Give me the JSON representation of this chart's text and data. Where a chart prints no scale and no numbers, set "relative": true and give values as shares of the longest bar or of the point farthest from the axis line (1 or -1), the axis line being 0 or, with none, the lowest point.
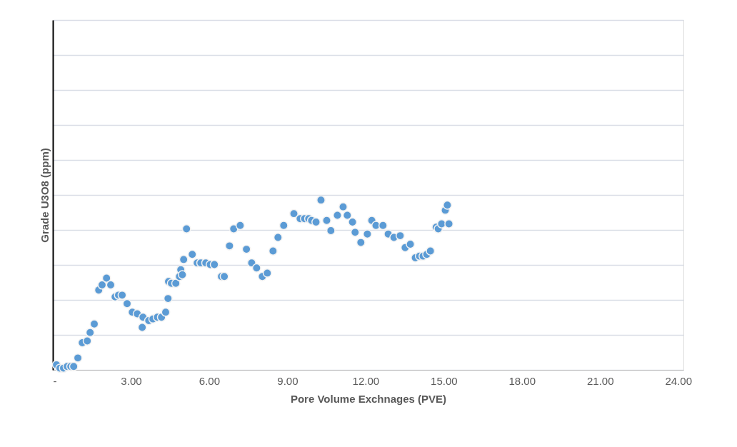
{
  "chart_data": {
    "type": "scatter",
    "xlabel": "Pore Volume Exchnages (PVE)",
    "ylabel": "Grade U3O8 (ppm)",
    "relative": true,
    "xlim": [
      0,
      24.2
    ],
    "xticks": [
      {
        "value": 0,
        "label": "-"
      },
      {
        "value": 3,
        "label": "3.00"
      },
      {
        "value": 6,
        "label": "6.00"
      },
      {
        "value": 9,
        "label": "9.00"
      },
      {
        "value": 12,
        "label": "12.00"
      },
      {
        "value": 15,
        "label": "15.00"
      },
      {
        "value": 18,
        "label": "18.00"
      },
      {
        "value": 21,
        "label": "21.00"
      },
      {
        "value": 24,
        "label": "24.00"
      }
    ],
    "tick_labels": "x",
    "grid": "y",
    "marker": "circle",
    "legend": false,
    "series": [
      {
        "color": "#5b9bd5",
        "x": [
          0.14,
          0.27,
          0.41,
          0.55,
          0.69,
          0.8,
          0.96,
          1.13,
          1.32,
          1.43,
          1.59,
          1.76,
          1.89,
          2.06,
          2.22,
          2.39,
          2.52,
          2.66,
          2.85,
          3.05,
          3.24,
          3.43,
          3.46,
          3.68,
          3.84,
          4.01,
          4.17,
          4.33,
          4.42,
          4.44,
          4.55,
          4.72,
          4.86,
          4.91,
          4.97,
          5.02,
          5.13,
          5.35,
          5.54,
          5.68,
          5.87,
          6.04,
          6.2,
          6.47,
          6.58,
          6.78,
          6.94,
          7.19,
          7.43,
          7.63,
          7.82,
          8.04,
          8.23,
          8.45,
          8.64,
          8.86,
          9.25,
          9.49,
          9.66,
          9.82,
          9.93,
          10.1,
          10.29,
          10.51,
          10.67,
          10.92,
          11.14,
          11.3,
          11.5,
          11.6,
          11.82,
          12.07,
          12.24,
          12.4,
          12.67,
          12.87,
          13.09,
          13.33,
          13.52,
          13.72,
          13.91,
          14.07,
          14.21,
          14.35,
          14.49,
          14.71,
          14.79,
          14.92,
          15.06,
          15.14,
          15.2
        ],
        "values": [
          0.03,
          0.01,
          0.01,
          0.02,
          0.02,
          0.02,
          0.07,
          0.16,
          0.17,
          0.22,
          0.27,
          0.47,
          0.5,
          0.54,
          0.5,
          0.43,
          0.44,
          0.44,
          0.39,
          0.34,
          0.33,
          0.25,
          0.31,
          0.29,
          0.3,
          0.31,
          0.31,
          0.34,
          0.42,
          0.52,
          0.51,
          0.51,
          0.55,
          0.59,
          0.56,
          0.65,
          0.83,
          0.68,
          0.63,
          0.63,
          0.63,
          0.62,
          0.62,
          0.55,
          0.55,
          0.73,
          0.83,
          0.85,
          0.71,
          0.63,
          0.6,
          0.55,
          0.57,
          0.7,
          0.78,
          0.85,
          0.92,
          0.89,
          0.89,
          0.89,
          0.88,
          0.87,
          1.0,
          0.88,
          0.82,
          0.91,
          0.96,
          0.91,
          0.87,
          0.81,
          0.75,
          0.8,
          0.88,
          0.85,
          0.85,
          0.8,
          0.78,
          0.79,
          0.72,
          0.74,
          0.66,
          0.67,
          0.67,
          0.68,
          0.7,
          0.84,
          0.83,
          0.86,
          0.94,
          0.97,
          0.86
        ]
      }
    ]
  }
}
